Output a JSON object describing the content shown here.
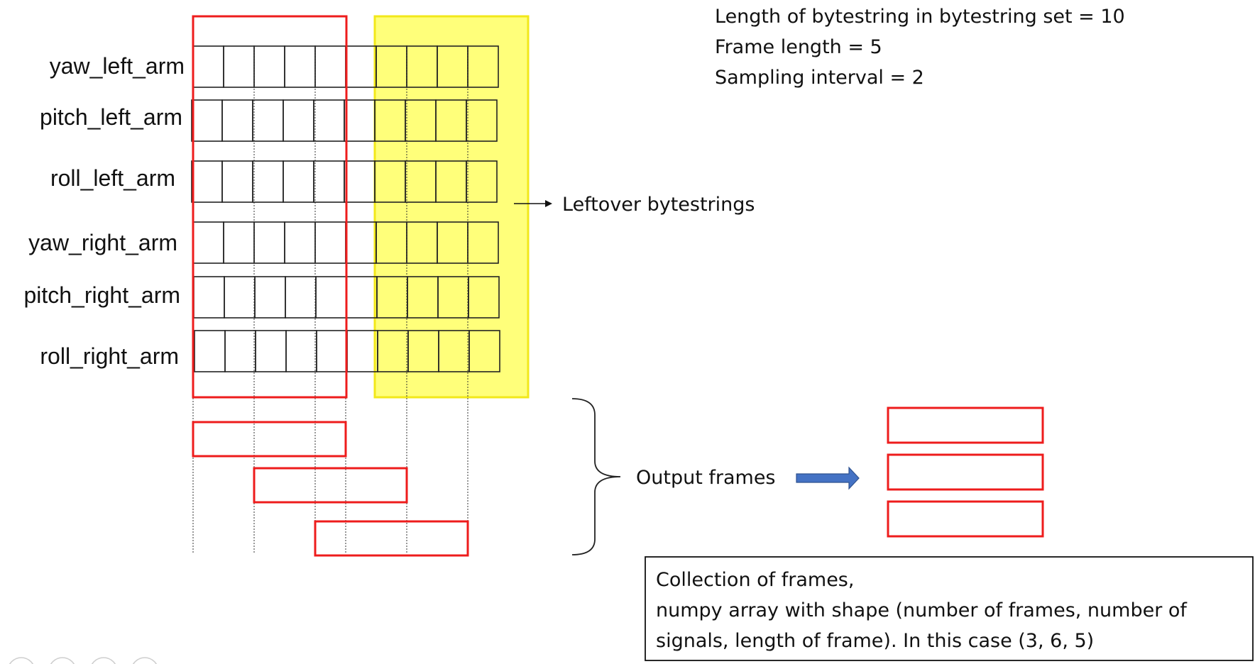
{
  "signals": [
    "yaw_left_arm",
    "pitch_left_arm",
    "roll_left_arm",
    "yaw_right_arm",
    "pitch_right_arm",
    "roll_right_arm"
  ],
  "bytestring_cells": 10,
  "frame_length_cells": 5,
  "sampling_interval_cells": 2,
  "output_frame_count": 3,
  "info": {
    "line1": "Length of bytestring in bytestring set = 10",
    "line2": "Frame length = 5",
    "line3": "Sampling interval = 2"
  },
  "leftover_label": "Leftover bytestrings",
  "output_frames_label": "Output frames",
  "collection": {
    "line1": "Collection of frames,",
    "line2": "numpy array with shape (number of frames, number of",
    "line3": "signals, length of frame). In this case (3, 6, 5)"
  },
  "colors": {
    "frame_outline": "#ee1c1c",
    "leftover_fill": "#ffff7a",
    "leftover_outline": "#f2e81a",
    "arrow_blue": "#4472c4",
    "arrow_blue_outline": "#2f528f",
    "cell_stroke": "#222222"
  },
  "nav_icons": [
    "pen-icon",
    "grid-icon",
    "zoom-icon",
    "more-icon"
  ]
}
